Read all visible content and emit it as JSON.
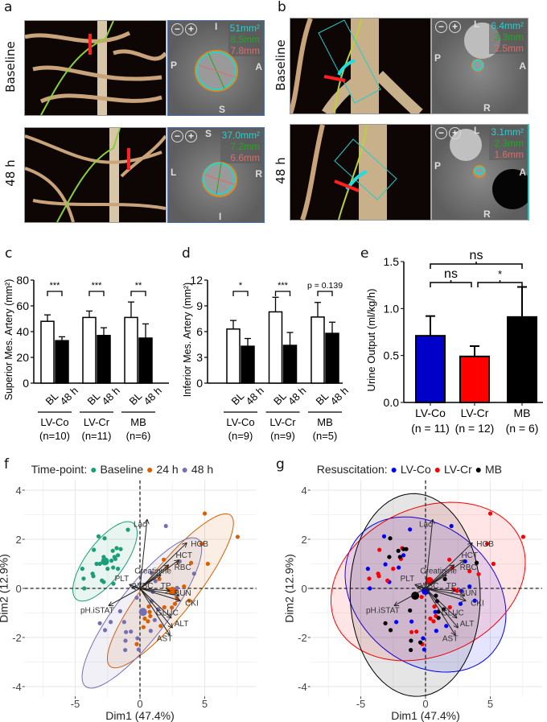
{
  "panels": {
    "a": "a",
    "b": "b",
    "c": "c",
    "d": "d",
    "e": "e",
    "f": "f",
    "g": "g"
  },
  "rows": {
    "baseline": "Baseline",
    "h48": "48 h"
  },
  "ct_images": {
    "a_baseline": {
      "area": "51mm²",
      "d1": "8.5mm",
      "d2": "7.8mm",
      "top": "I",
      "left": "P",
      "right": "A",
      "bottom": "S"
    },
    "a_48h": {
      "area": "37.0mm²",
      "d1": "7.2mm",
      "d2": "6.6mm",
      "top": "S",
      "left": "L",
      "right": "R",
      "bottom": "I"
    },
    "b_baseline": {
      "area": "6.4mm²",
      "d1": "3.3mm",
      "d2": "2.5mm",
      "top": "L",
      "left": "P",
      "right": "A",
      "bottom": "R"
    },
    "b_48h": {
      "area": "3.1mm²",
      "d1": "2.3mm",
      "d2": "1.6mm",
      "top": "L",
      "left": "P",
      "right": "A",
      "bottom": "R"
    },
    "zoom_out": "−",
    "zoom_in": "+"
  },
  "chart_data": [
    {
      "id": "c",
      "type": "bar",
      "ylabel": "Superior Mes. Artery (mm²)",
      "ylim": [
        0,
        80
      ],
      "yticks": [
        0,
        20,
        40,
        60,
        80
      ],
      "groups": [
        {
          "name": "LV-Co",
          "n": "(n=10)",
          "bars": [
            {
              "label": "BL",
              "value": 48,
              "err": 53
            },
            {
              "label": "48 h",
              "value": 33,
              "err": 36
            }
          ],
          "sig": "***"
        },
        {
          "name": "LV-Cr",
          "n": "(n=11)",
          "bars": [
            {
              "label": "BL",
              "value": 51,
              "err": 56
            },
            {
              "label": "48 h",
              "value": 37,
              "err": 43
            }
          ],
          "sig": "***"
        },
        {
          "name": "MB",
          "n": "(n=6)",
          "bars": [
            {
              "label": "BL",
              "value": 51,
              "err": 63
            },
            {
              "label": "48 h",
              "value": 35,
              "err": 46
            }
          ],
          "sig": "**"
        }
      ]
    },
    {
      "id": "d",
      "type": "bar",
      "ylabel": "Inferior Mes. Artery (mm²)",
      "ylim": [
        0,
        12
      ],
      "yticks": [
        0,
        3,
        6,
        9,
        12
      ],
      "groups": [
        {
          "name": "LV-Co",
          "n": "(n=9)",
          "bars": [
            {
              "label": "BL",
              "value": 6.3,
              "err": 7.3
            },
            {
              "label": "48 h",
              "value": 4.3,
              "err": 5.2
            }
          ],
          "sig": "*"
        },
        {
          "name": "LV-Cr",
          "n": "(n=9)",
          "bars": [
            {
              "label": "BL",
              "value": 8.3,
              "err": 10.0
            },
            {
              "label": "48 h",
              "value": 4.4,
              "err": 5.9
            }
          ],
          "sig": "***"
        },
        {
          "name": "MB",
          "n": "(n=5)",
          "bars": [
            {
              "label": "BL",
              "value": 7.7,
              "err": 9.4
            },
            {
              "label": "48 h",
              "value": 5.8,
              "err": 7.1
            }
          ],
          "sig": "p = 0.139"
        }
      ]
    },
    {
      "id": "e",
      "type": "bar",
      "ylabel": "Urine Output (ml/kg/h)",
      "ylim": [
        0,
        1.5
      ],
      "yticks": [
        "0.0",
        "0.5",
        "1.0",
        "1.5"
      ],
      "bars": [
        {
          "name": "LV-Co",
          "n": "(n = 11)",
          "value": 0.71,
          "err": 0.92,
          "color": "#0000c8"
        },
        {
          "name": "LV-Cr",
          "n": "(n = 12)",
          "value": 0.49,
          "err": 0.6,
          "color": "#ff0000"
        },
        {
          "name": "MB",
          "n": "(n = 6)",
          "value": 0.91,
          "err": 1.23,
          "color": "#000000"
        }
      ],
      "comparisons": [
        {
          "a": 0,
          "b": 2,
          "label": "ns"
        },
        {
          "a": 0,
          "b": 1,
          "label": "ns"
        },
        {
          "a": 1,
          "b": 2,
          "label": "*"
        }
      ]
    },
    {
      "id": "f",
      "type": "scatter",
      "xlabel": "Dim1 (47.4%)",
      "ylabel": "Dim2 (12.9%)",
      "xlim": [
        -8.9,
        9
      ],
      "ylim": [
        -4.6,
        4.4
      ],
      "xticks": [
        -5,
        0,
        5
      ],
      "yticks": [
        -4,
        -2,
        0,
        2,
        4
      ],
      "legend_title": "Time-point:",
      "legend_position": "top",
      "series": [
        {
          "name": "Baseline",
          "color": "#1b9e77",
          "centroid": [
            -2.7,
            1.1
          ],
          "ellipse": {
            "center": [
              -2.7,
              1.1
            ],
            "u": [
              2.2,
              1.55
            ],
            "v": [
              1.15,
              -0.47
            ]
          },
          "points": [
            [
              -0.93,
              2.39
            ],
            [
              -3.2,
              2.12
            ],
            [
              -2.73,
              2.04
            ],
            [
              -3.56,
              1.57
            ],
            [
              -1.8,
              1.64
            ],
            [
              -1.49,
              1.6
            ],
            [
              -2.1,
              1.53
            ],
            [
              -2.8,
              1.28
            ],
            [
              -2.7,
              1.1
            ],
            [
              -3.35,
              1.0
            ],
            [
              -3.1,
              1.0
            ],
            [
              -1.97,
              1.28
            ],
            [
              -1.9,
              1.2
            ],
            [
              -2.5,
              0.8
            ],
            [
              -2.07,
              0.85
            ],
            [
              -1.7,
              0.8
            ],
            [
              -4.45,
              0.8
            ],
            [
              -3.66,
              0.6
            ],
            [
              -3.6,
              0.5
            ],
            [
              -4.35,
              0.4
            ],
            [
              -2.94,
              0.32
            ],
            [
              -2.8,
              0.26
            ],
            [
              -2.05,
              0.19
            ],
            [
              -4.3,
              0
            ],
            [
              -1.7,
              1.35
            ],
            [
              -2.2,
              1.13
            ]
          ]
        },
        {
          "name": "24 h",
          "color": "#d95f02",
          "centroid": [
            2.5,
            -0.1
          ],
          "ellipse": {
            "center": [
              2.35,
              -0.1
            ],
            "u": [
              4.65,
              3.08
            ],
            "v": [
              1.45,
              -0.61
            ]
          },
          "points": [
            [
              5.0,
              3.05
            ],
            [
              7.54,
              2.1
            ],
            [
              4.76,
              1.82
            ],
            [
              5.24,
              1.0
            ],
            [
              3.95,
              1.04
            ],
            [
              1.84,
              1.17
            ],
            [
              2.96,
              1.06
            ],
            [
              2.07,
              0.84
            ],
            [
              1.5,
              0.38
            ],
            [
              3.4,
              0.08
            ],
            [
              2.65,
              -0.05
            ],
            [
              2.75,
              -0.1
            ],
            [
              2.44,
              -0.1
            ],
            [
              2.2,
              -0.04
            ],
            [
              3.8,
              -0.5
            ],
            [
              2.7,
              -0.63
            ],
            [
              1.88,
              -0.77
            ],
            [
              2.46,
              -0.78
            ],
            [
              0.68,
              -0.74
            ],
            [
              0.75,
              -0.96
            ],
            [
              0.8,
              -1.13
            ],
            [
              0.37,
              -1.23
            ],
            [
              0.62,
              -1.34
            ],
            [
              1.6,
              -1.53
            ],
            [
              0.27,
              -1.58
            ],
            [
              -0.25,
              -2.27
            ],
            [
              2.86,
              -0.42
            ]
          ]
        },
        {
          "name": "48 h",
          "color": "#7570b3",
          "centroid": [
            0.23,
            -0.96
          ],
          "ellipse": {
            "center": [
              0.15,
              -1.0
            ],
            "u": [
              4.35,
              3.0
            ],
            "v": [
              1.56,
              -0.63
            ]
          },
          "points": [
            [
              2.0,
              2.54
            ],
            [
              3.06,
              1.1
            ],
            [
              4.18,
              0.6
            ],
            [
              1.2,
              0.3
            ],
            [
              0.9,
              0.62
            ],
            [
              2.86,
              0.02
            ],
            [
              1.0,
              -0.14
            ],
            [
              -0.25,
              -0.38
            ],
            [
              -1.53,
              -0.93
            ],
            [
              -2.26,
              -1.37
            ],
            [
              -3.1,
              -1.42
            ],
            [
              -2.7,
              -1.7
            ],
            [
              -1.22,
              -1.37
            ],
            [
              -1.08,
              -1.78
            ],
            [
              -0.7,
              -1.76
            ],
            [
              -1.12,
              -2.13
            ],
            [
              -1.14,
              -2.51
            ],
            [
              -0.19,
              -2.03
            ],
            [
              -0.1,
              -2.49
            ],
            [
              0.83,
              -1.73
            ],
            [
              1.14,
              -1.29
            ],
            [
              1.4,
              -0.85
            ],
            [
              0.9,
              -0.52
            ]
          ]
        }
      ],
      "loadings": [
        {
          "name": "Lac",
          "x": 0.55,
          "y": 2.8,
          "lx": 0.0,
          "ly": 2.6
        },
        {
          "name": "HGB",
          "x": 3.6,
          "y": 1.85,
          "lx": 4.6,
          "ly": 1.8
        },
        {
          "name": "HCT",
          "x": 3.0,
          "y": 1.15,
          "lx": 3.4,
          "ly": 1.35
        },
        {
          "name": "RBC",
          "x": 2.2,
          "y": 0.95,
          "lx": 3.3,
          "ly": 0.85
        },
        {
          "name": "Creatinine",
          "x": 1.6,
          "y": 0.55,
          "lx": 1.0,
          "ly": 0.7
        },
        {
          "name": "PLT",
          "x": -0.8,
          "y": 0.15,
          "lx": -1.4,
          "ly": 0.4
        },
        {
          "name": "WBC",
          "x": -0.6,
          "y": 0.05,
          "lx": 0.3,
          "ly": 0.1
        },
        {
          "name": "TP",
          "x": 2.3,
          "y": -0.1,
          "lx": 2.0,
          "ly": 0.1
        },
        {
          "name": "BUN",
          "x": 3.0,
          "y": -0.3,
          "lx": 3.3,
          "ly": -0.2
        },
        {
          "name": "CKI",
          "x": 3.1,
          "y": -0.5,
          "lx": 4.0,
          "ly": -0.6
        },
        {
          "name": "GLUC",
          "x": 2.4,
          "y": -1.2,
          "lx": 2.1,
          "ly": -1.0
        },
        {
          "name": "ALT",
          "x": 2.5,
          "y": -1.6,
          "lx": 3.2,
          "ly": -1.45
        },
        {
          "name": "AST",
          "x": 2.3,
          "y": -1.9,
          "lx": 1.9,
          "ly": -2.05
        },
        {
          "name": "pH.iSTAT",
          "x": -2.4,
          "y": -0.7,
          "lx": -3.3,
          "ly": -0.9
        }
      ]
    },
    {
      "id": "g",
      "type": "scatter",
      "xlabel": "Dim1 (47.4%)",
      "ylabel": "Dim2 (12.9%)",
      "xlim": [
        -8.9,
        9
      ],
      "ylim": [
        -4.6,
        4.4
      ],
      "xticks": [
        -5,
        0,
        5
      ],
      "yticks": [
        -4,
        -2,
        0,
        2,
        4
      ],
      "legend_title": "Resuscitation:",
      "legend_position": "top",
      "series": [
        {
          "name": "LV-Co",
          "color": "#0000ff",
          "centroid": [
            0,
            -0.1
          ],
          "ellipse": {
            "center": [
              0,
              -0.25
            ],
            "u": [
              6.2,
              -1.0
            ],
            "v": [
              0.4,
              3.0
            ]
          },
          "points": [
            [
              -4.45,
              0.8
            ],
            [
              -3.2,
              2.12
            ],
            [
              -2.8,
              0.26
            ],
            [
              -2.07,
              0.85
            ],
            [
              -1.7,
              1.35
            ],
            [
              -4.3,
              0
            ],
            [
              2.0,
              2.54
            ],
            [
              3.06,
              1.1
            ],
            [
              3.4,
              0.08
            ],
            [
              2.75,
              -0.1
            ],
            [
              3.8,
              -0.5
            ],
            [
              2.7,
              -0.63
            ],
            [
              0.75,
              -0.96
            ],
            [
              1.6,
              -1.53
            ],
            [
              0.83,
              -1.73
            ],
            [
              -0.19,
              -2.03
            ],
            [
              -0.1,
              -2.49
            ],
            [
              -2.26,
              -1.37
            ],
            [
              -1.08,
              -1.35
            ],
            [
              -1.2,
              2.4
            ],
            [
              -3.1,
              0.98
            ]
          ]
        },
        {
          "name": "LV-Cr",
          "color": "#ff0000",
          "centroid": [
            0.3,
            0.3
          ],
          "ellipse": {
            "center": [
              0.2,
              0.28
            ],
            "u": [
              7.5,
              0.9
            ],
            "v": [
              -0.3,
              3.1
            ]
          },
          "points": [
            [
              -3.56,
              1.57
            ],
            [
              -3.66,
              0.6
            ],
            [
              -3.6,
              0.5
            ],
            [
              -2.5,
              0.8
            ],
            [
              -1.8,
              1.64
            ],
            [
              -1.9,
              1.2
            ],
            [
              -4.35,
              0.4
            ],
            [
              -2.94,
              0.32
            ],
            [
              5.0,
              3.05
            ],
            [
              7.54,
              2.1
            ],
            [
              4.76,
              1.82
            ],
            [
              5.24,
              1.0
            ],
            [
              3.4,
              0.7
            ],
            [
              1.84,
              1.17
            ],
            [
              2.07,
              0.84
            ],
            [
              2.44,
              -0.1
            ],
            [
              2.2,
              -0.04
            ],
            [
              1.88,
              -0.77
            ],
            [
              0.68,
              -0.74
            ],
            [
              0.37,
              -1.23
            ],
            [
              0.62,
              -1.34
            ],
            [
              0.8,
              -1.13
            ],
            [
              -1.08,
              -1.78
            ],
            [
              -0.7,
              -1.76
            ],
            [
              -0.25,
              -2.27
            ],
            [
              -0.3,
              -0.35
            ],
            [
              4.1,
              0.58
            ]
          ]
        },
        {
          "name": "MB",
          "color": "#000000",
          "centroid": [
            -0.8,
            -0.3
          ],
          "ellipse": {
            "center": [
              -0.8,
              -0.27
            ],
            "u": [
              0.5,
              4.1
            ],
            "v": [
              5.0,
              -0.5
            ]
          },
          "points": [
            [
              -2.73,
              2.04
            ],
            [
              -1.49,
              1.6
            ],
            [
              -2.1,
              1.53
            ],
            [
              -2.8,
              1.28
            ],
            [
              -1.97,
              1.28
            ],
            [
              -1.2,
              -0.9
            ],
            [
              3.95,
              1.04
            ],
            [
              1.5,
              0.38
            ],
            [
              0.9,
              -0.52
            ],
            [
              1.4,
              -0.85
            ],
            [
              1.0,
              -0.95
            ],
            [
              1.0,
              -1.2
            ],
            [
              -3.1,
              -1.42
            ],
            [
              -2.7,
              -1.7
            ],
            [
              -1.12,
              -2.13
            ],
            [
              -1.14,
              -2.51
            ],
            [
              -0.4,
              -2.2
            ],
            [
              0.8,
              -0.3
            ],
            [
              -1.7,
              1.6
            ]
          ]
        }
      ],
      "loadings": "same_as_f"
    }
  ]
}
